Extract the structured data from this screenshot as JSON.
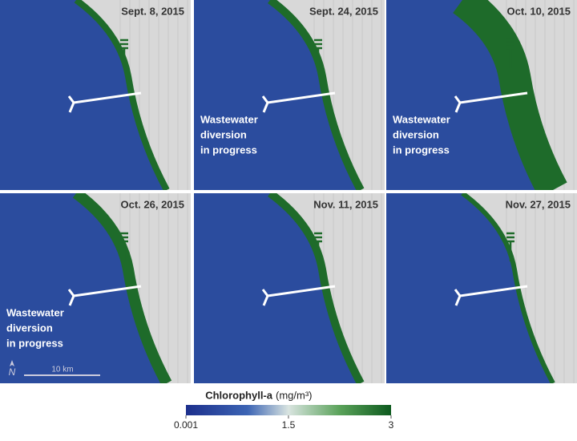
{
  "panels": [
    {
      "date": "Sept. 8, 2015"
    },
    {
      "date": "Sept. 24, 2015",
      "annotation": [
        "Wastewater",
        "diversion",
        "in progress"
      ]
    },
    {
      "date": "Oct. 10, 2015",
      "annotation": [
        "Wastewater",
        "diversion",
        "in progress"
      ]
    },
    {
      "date": "Oct. 26, 2015",
      "annotation": [
        "Wastewater",
        "diversion",
        "in progress"
      ]
    },
    {
      "date": "Nov. 11, 2015"
    },
    {
      "date": "Nov. 27, 2015"
    }
  ],
  "north": "N",
  "scale_bar": "10 km",
  "colorbar": {
    "title": "Chlorophyll-a",
    "units": "(mg/m³)",
    "ticks": [
      0.001,
      1.5,
      3
    ]
  }
}
